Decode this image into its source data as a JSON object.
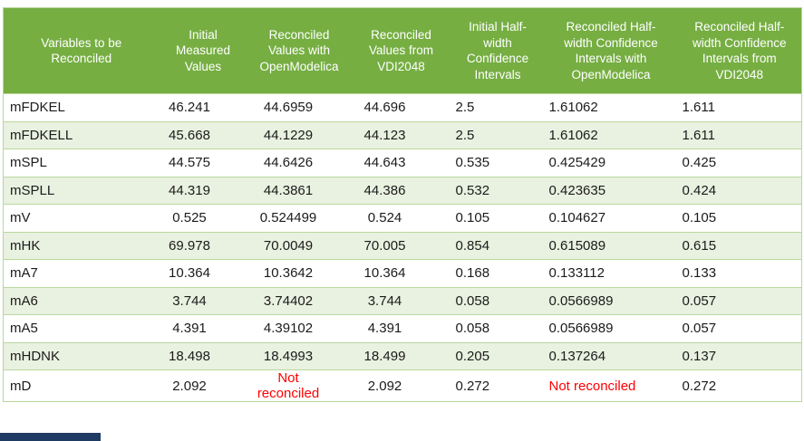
{
  "table": {
    "not_reconciled_label": "Not reconciled",
    "columns": [
      {
        "label": "Variables to be\nReconciled"
      },
      {
        "label": "Initial\nMeasured\nValues"
      },
      {
        "label": "Reconciled\nValues with\nOpenModelica"
      },
      {
        "label": "Reconciled\nValues from\nVDI2048"
      },
      {
        "label": "Initial Half-\nwidth\nConfidence\nIntervals"
      },
      {
        "label": "Reconciled Half-\nwidth Confidence\nIntervals with\nOpenModelica"
      },
      {
        "label": "Reconciled Half-\nwidth Confidence\nIntervals from\nVDI2048"
      }
    ],
    "rows": [
      [
        "mFDKEL",
        "46.241",
        "44.6959",
        "44.696",
        "2.5",
        "1.61062",
        "1.611"
      ],
      [
        "mFDKELL",
        "45.668",
        "44.1229",
        "44.123",
        "2.5",
        "1.61062",
        "1.611"
      ],
      [
        "mSPL",
        "44.575",
        "44.6426",
        "44.643",
        "0.535",
        "0.425429",
        "0.425"
      ],
      [
        "mSPLL",
        "44.319",
        "44.3861",
        "44.386",
        "0.532",
        "0.423635",
        "0.424"
      ],
      [
        "mV",
        "0.525",
        "0.524499",
        "0.524",
        "0.105",
        "0.104627",
        "0.105"
      ],
      [
        "mHK",
        "69.978",
        "70.0049",
        "70.005",
        "0.854",
        "0.615089",
        "0.615"
      ],
      [
        "mA7",
        "10.364",
        "10.3642",
        "10.364",
        "0.168",
        "0.133112",
        "0.133"
      ],
      [
        "mA6",
        "3.744",
        "3.74402",
        "3.744",
        "0.058",
        "0.0566989",
        "0.057"
      ],
      [
        "mA5",
        "4.391",
        "4.39102",
        "4.391",
        "0.058",
        "0.0566989",
        "0.057"
      ],
      [
        "mHDNK",
        "18.498",
        "18.4993",
        "18.499",
        "0.205",
        "0.137264",
        "0.137"
      ],
      [
        "mD",
        "2.092",
        "Not reconciled",
        "2.092",
        "0.272",
        "Not reconciled",
        "0.272"
      ]
    ]
  },
  "colors": {
    "header_background": "#76AE42",
    "header_text": "#FFFFFF",
    "row_band_background": "#E9F1E0",
    "row_background": "#FFFFFF",
    "grid_border": "#B9D89E",
    "body_text": "#1B1B1B",
    "not_reconciled_text": "#FF0000",
    "window_fragment": "#1F3A63"
  }
}
